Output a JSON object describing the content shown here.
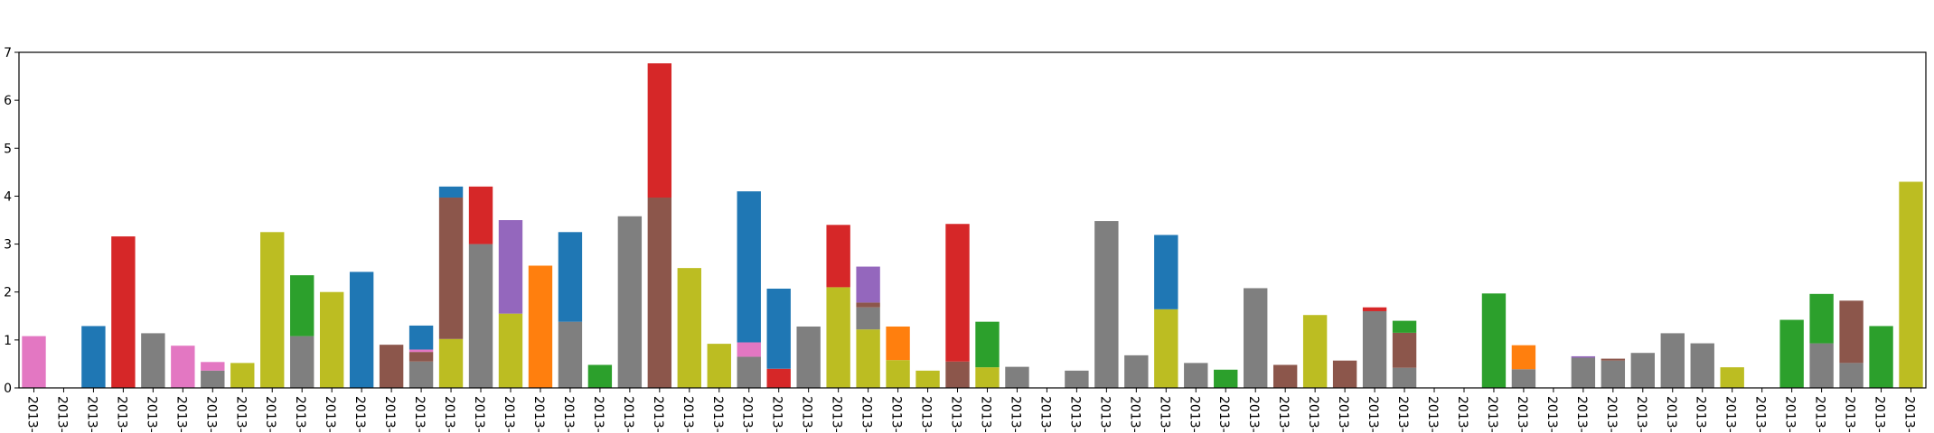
{
  "chart_data": {
    "type": "bar",
    "stacked": true,
    "title": "",
    "xlabel": "",
    "ylabel": "",
    "ylim": [
      0,
      7
    ],
    "yticks": [
      0,
      1,
      2,
      3,
      4,
      5,
      6,
      7
    ],
    "grid": false,
    "legend": "none",
    "x_tick_label": "2013-",
    "x_tick_count": 64,
    "colors": {
      "blue": "#1f77b4",
      "orange": "#ff7f0e",
      "green": "#2ca02c",
      "red": "#d62728",
      "purple": "#9467bd",
      "brown": "#8c564b",
      "pink": "#e377c2",
      "gray": "#7f7f7f",
      "olive": "#bcbd22"
    },
    "bars": [
      [
        {
          "c": "pink",
          "v": 1.08
        }
      ],
      [],
      [
        {
          "c": "blue",
          "v": 1.29
        }
      ],
      [
        {
          "c": "red",
          "v": 3.16
        }
      ],
      [
        {
          "c": "gray",
          "v": 1.14
        }
      ],
      [
        {
          "c": "pink",
          "v": 0.88
        }
      ],
      [
        {
          "c": "gray",
          "v": 0.36
        },
        {
          "c": "pink",
          "v": 0.18
        }
      ],
      [
        {
          "c": "olive",
          "v": 0.52
        }
      ],
      [
        {
          "c": "olive",
          "v": 3.25
        }
      ],
      [
        {
          "c": "gray",
          "v": 1.08
        },
        {
          "c": "green",
          "v": 1.27
        }
      ],
      [
        {
          "c": "olive",
          "v": 2.0
        }
      ],
      [
        {
          "c": "blue",
          "v": 2.42
        }
      ],
      [
        {
          "c": "brown",
          "v": 0.9
        }
      ],
      [
        {
          "c": "gray",
          "v": 0.55
        },
        {
          "c": "brown",
          "v": 0.2
        },
        {
          "c": "pink",
          "v": 0.05
        },
        {
          "c": "blue",
          "v": 0.5
        }
      ],
      [
        {
          "c": "olive",
          "v": 1.02
        },
        {
          "c": "brown",
          "v": 2.95
        },
        {
          "c": "blue",
          "v": 0.23
        }
      ],
      [
        {
          "c": "gray",
          "v": 3.0
        },
        {
          "c": "red",
          "v": 1.2
        }
      ],
      [
        {
          "c": "olive",
          "v": 1.55
        },
        {
          "c": "purple",
          "v": 1.95
        }
      ],
      [
        {
          "c": "orange",
          "v": 2.55
        }
      ],
      [
        {
          "c": "gray",
          "v": 1.38
        },
        {
          "c": "blue",
          "v": 1.87
        }
      ],
      [
        {
          "c": "green",
          "v": 0.48
        }
      ],
      [
        {
          "c": "gray",
          "v": 3.58
        }
      ],
      [
        {
          "c": "brown",
          "v": 3.97
        },
        {
          "c": "red",
          "v": 2.8
        }
      ],
      [
        {
          "c": "olive",
          "v": 2.5
        }
      ],
      [
        {
          "c": "olive",
          "v": 0.92
        }
      ],
      [
        {
          "c": "gray",
          "v": 0.65
        },
        {
          "c": "pink",
          "v": 0.3
        },
        {
          "c": "blue",
          "v": 3.15
        }
      ],
      [
        {
          "c": "red",
          "v": 0.4
        },
        {
          "c": "blue",
          "v": 1.67
        }
      ],
      [
        {
          "c": "gray",
          "v": 1.28
        }
      ],
      [
        {
          "c": "olive",
          "v": 2.1
        },
        {
          "c": "red",
          "v": 1.3
        }
      ],
      [
        {
          "c": "olive",
          "v": 1.22
        },
        {
          "c": "gray",
          "v": 0.46
        },
        {
          "c": "brown",
          "v": 0.1
        },
        {
          "c": "purple",
          "v": 0.75
        }
      ],
      [
        {
          "c": "olive",
          "v": 0.58
        },
        {
          "c": "orange",
          "v": 0.7
        }
      ],
      [
        {
          "c": "olive",
          "v": 0.36
        }
      ],
      [
        {
          "c": "brown",
          "v": 0.55
        },
        {
          "c": "red",
          "v": 2.87
        }
      ],
      [
        {
          "c": "olive",
          "v": 0.43
        },
        {
          "c": "green",
          "v": 0.95
        }
      ],
      [
        {
          "c": "gray",
          "v": 0.44
        }
      ],
      [],
      [
        {
          "c": "gray",
          "v": 0.36
        }
      ],
      [
        {
          "c": "gray",
          "v": 3.48
        }
      ],
      [
        {
          "c": "gray",
          "v": 0.68
        }
      ],
      [
        {
          "c": "olive",
          "v": 1.64
        },
        {
          "c": "blue",
          "v": 1.55
        }
      ],
      [
        {
          "c": "gray",
          "v": 0.52
        }
      ],
      [
        {
          "c": "green",
          "v": 0.38
        }
      ],
      [
        {
          "c": "gray",
          "v": 2.08
        }
      ],
      [
        {
          "c": "brown",
          "v": 0.48
        }
      ],
      [
        {
          "c": "olive",
          "v": 1.52
        }
      ],
      [
        {
          "c": "brown",
          "v": 0.57
        }
      ],
      [
        {
          "c": "gray",
          "v": 1.6
        },
        {
          "c": "red",
          "v": 0.08
        }
      ],
      [
        {
          "c": "gray",
          "v": 0.42
        },
        {
          "c": "brown",
          "v": 0.73
        },
        {
          "c": "green",
          "v": 0.25
        }
      ],
      [],
      [],
      [
        {
          "c": "green",
          "v": 1.97
        }
      ],
      [
        {
          "c": "gray",
          "v": 0.39
        },
        {
          "c": "orange",
          "v": 0.5
        }
      ],
      [],
      [
        {
          "c": "gray",
          "v": 0.63
        },
        {
          "c": "purple",
          "v": 0.03
        }
      ],
      [
        {
          "c": "gray",
          "v": 0.57
        },
        {
          "c": "brown",
          "v": 0.04
        }
      ],
      [
        {
          "c": "gray",
          "v": 0.73
        }
      ],
      [
        {
          "c": "gray",
          "v": 1.14
        }
      ],
      [
        {
          "c": "gray",
          "v": 0.93
        }
      ],
      [
        {
          "c": "olive",
          "v": 0.43
        }
      ],
      [],
      [
        {
          "c": "green",
          "v": 1.42
        }
      ],
      [
        {
          "c": "gray",
          "v": 0.93
        },
        {
          "c": "green",
          "v": 1.03
        }
      ],
      [
        {
          "c": "gray",
          "v": 0.52
        },
        {
          "c": "brown",
          "v": 1.3
        }
      ],
      [
        {
          "c": "green",
          "v": 1.29
        }
      ],
      [
        {
          "c": "olive",
          "v": 4.3
        }
      ]
    ]
  }
}
